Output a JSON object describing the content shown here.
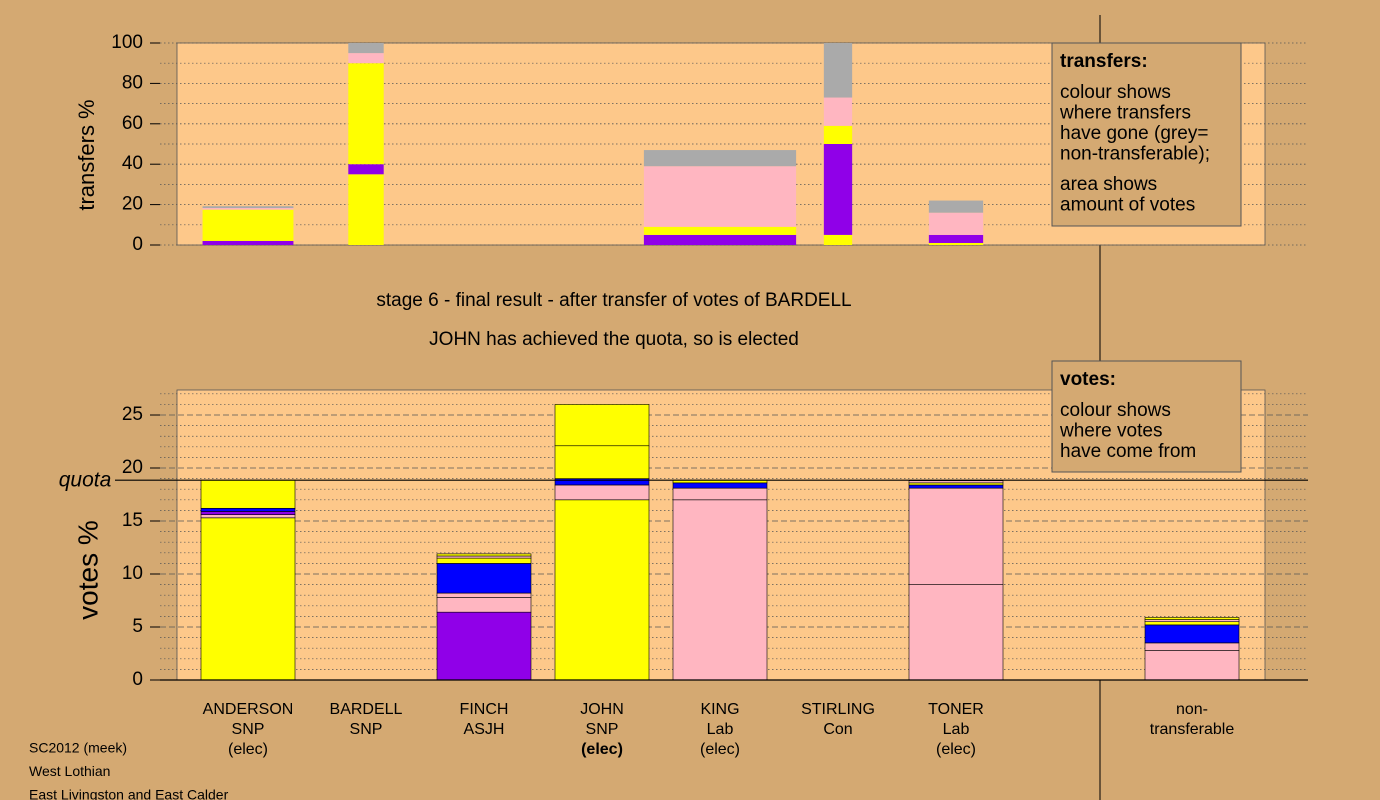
{
  "chart_data": [
    {
      "type": "stacked-bar",
      "ylabel": "transfers %",
      "ylim": [
        0,
        100
      ],
      "yticks": [
        0,
        20,
        40,
        60,
        80,
        100
      ],
      "minor_yticks": [
        10,
        30,
        50,
        70,
        90
      ],
      "grid": true,
      "widths": [
        0.77,
        0.3,
        null,
        null,
        1.29,
        0.24,
        0.46,
        null,
        null
      ],
      "bars": [
        {
          "segments": [
            {
              "color": "#9000e8",
              "value": 2
            },
            {
              "color": "#ffff00",
              "value": 15.5
            },
            {
              "color": "#ffb6c1",
              "value": 0.8
            },
            {
              "color": "#aaaaaa",
              "value": 0.9
            }
          ]
        },
        {
          "segments": [
            {
              "color": "#ffff00",
              "value": 35
            },
            {
              "color": "#9000e8",
              "value": 5
            },
            {
              "color": "#ffff00",
              "value": 50
            },
            {
              "color": "#ffb6c1",
              "value": 5
            },
            {
              "color": "#aaaaaa",
              "value": 5
            }
          ]
        },
        {
          "segments": []
        },
        {
          "segments": []
        },
        {
          "segments": [
            {
              "color": "#9000e8",
              "value": 5
            },
            {
              "color": "#ffff00",
              "value": 4
            },
            {
              "color": "#ffb6c1",
              "value": 30
            },
            {
              "color": "#aaaaaa",
              "value": 8
            }
          ]
        },
        {
          "segments": [
            {
              "color": "#ffff00",
              "value": 5
            },
            {
              "color": "#9000e8",
              "value": 45
            },
            {
              "color": "#ffff00",
              "value": 9
            },
            {
              "color": "#ffb6c1",
              "value": 14
            },
            {
              "color": "#aaaaaa",
              "value": 27
            }
          ]
        },
        {
          "segments": [
            {
              "color": "#ffff00",
              "value": 1
            },
            {
              "color": "#9000e8",
              "value": 4
            },
            {
              "color": "#ffb6c1",
              "value": 11
            },
            {
              "color": "#aaaaaa",
              "value": 6
            }
          ]
        },
        {
          "segments": []
        },
        {
          "segments": []
        }
      ],
      "note": {
        "heading": "transfers:",
        "lines": [
          "colour shows",
          "where transfers",
          "have gone (grey=",
          "non-transferable);",
          "area shows",
          "amount of votes"
        ]
      }
    },
    {
      "type": "stacked-bar",
      "title": "stage 6 - final result - after transfer of votes of BARDELL",
      "subtitle": "JOHN has achieved the quota, so is elected",
      "ylabel": "votes %",
      "ylim": [
        0,
        27.36
      ],
      "yticks": [
        0,
        5,
        10,
        15,
        20,
        25
      ],
      "minor_yticks": [
        1,
        2,
        3,
        4,
        6,
        7,
        8,
        9,
        11,
        12,
        13,
        14,
        16,
        17,
        18,
        19,
        21,
        22,
        23,
        24,
        26,
        27
      ],
      "grid": true,
      "quota": {
        "label": "quota",
        "value": 18.85
      },
      "categories": [
        [
          "ANDERSON",
          "SNP",
          "(elec)"
        ],
        [
          "BARDELL",
          "SNP"
        ],
        [
          "FINCH",
          "ASJH"
        ],
        [
          "JOHN",
          "SNP",
          "(elec)"
        ],
        [
          "KING",
          "Lab",
          "(elec)"
        ],
        [
          "STIRLING",
          "Con"
        ],
        [
          "TONER",
          "Lab",
          "(elec)"
        ],
        null,
        [
          "non-",
          "transferable"
        ]
      ],
      "highlight": 3,
      "bars": [
        {
          "segments": [
            {
              "color": "#ffff00",
              "value": 15.3
            },
            {
              "color": "#ffb6c1",
              "value": 0.3
            },
            {
              "color": "#9000e8",
              "value": 0.3
            },
            {
              "color": "#0000ff",
              "value": 0.3
            },
            {
              "color": "#ffff00",
              "value": 2.65
            }
          ]
        },
        {
          "segments": []
        },
        {
          "segments": [
            {
              "color": "#9000e8",
              "value": 6.4
            },
            {
              "color": "#ffb6c1",
              "value": 1.4
            },
            {
              "color": "#ffb6c1",
              "value": 0.4
            },
            {
              "color": "#0000ff",
              "value": 2.8
            },
            {
              "color": "#ffff00",
              "value": 0.5
            },
            {
              "color": "#ffb6c1",
              "value": 0.2
            },
            {
              "color": "#ffff00",
              "value": 0.2
            }
          ]
        },
        {
          "segments": [
            {
              "color": "#ffff00",
              "value": 17
            },
            {
              "color": "#ffb6c1",
              "value": 1.4
            },
            {
              "color": "#0000ff",
              "value": 0.6
            },
            {
              "color": "#ffff00",
              "value": 3.1
            },
            {
              "color": "#ffff00",
              "value": 3.9
            }
          ]
        },
        {
          "segments": [
            {
              "color": "#ffb6c1",
              "value": 17
            },
            {
              "color": "#ffb6c1",
              "value": 1.1
            },
            {
              "color": "#0000ff",
              "value": 0.5
            },
            {
              "color": "#ffff00",
              "value": 0.25
            }
          ]
        },
        {
          "segments": []
        },
        {
          "segments": [
            {
              "color": "#ffb6c1",
              "value": 9
            },
            {
              "color": "#ffb6c1",
              "value": 9.1
            },
            {
              "color": "#0000ff",
              "value": 0.3
            },
            {
              "color": "#ffff00",
              "value": 0.2
            },
            {
              "color": "#ffb6c1",
              "value": 0.2
            }
          ]
        },
        {
          "segments": []
        },
        {
          "segments": [
            {
              "color": "#ffb6c1",
              "value": 2.8
            },
            {
              "color": "#ffb6c1",
              "value": 0.7
            },
            {
              "color": "#0000ff",
              "value": 1.7
            },
            {
              "color": "#ffff00",
              "value": 0.3
            },
            {
              "color": "#ffb6c1",
              "value": 0.2
            },
            {
              "color": "#ffff00",
              "value": 0.2
            }
          ]
        }
      ],
      "note": {
        "heading": "votes:",
        "lines": [
          "colour shows",
          "where votes",
          "have come from"
        ]
      }
    }
  ],
  "footer": [
    "SC2012 (meek)",
    "West Lothian",
    "East Livingston and East Calder"
  ]
}
